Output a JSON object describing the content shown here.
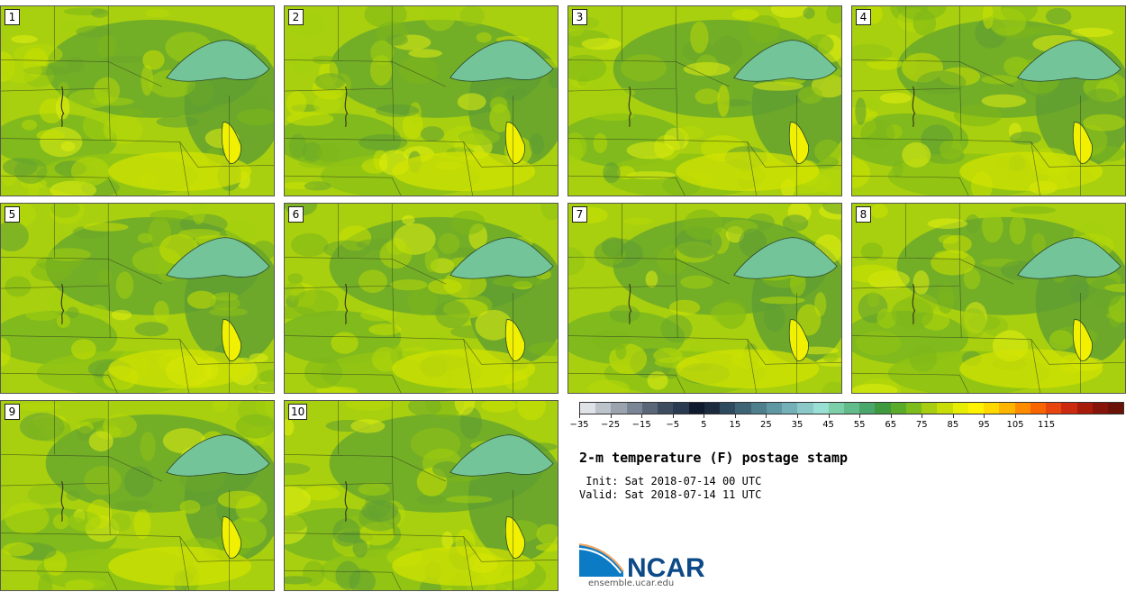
{
  "panels": [
    {
      "label": "1"
    },
    {
      "label": "2"
    },
    {
      "label": "3"
    },
    {
      "label": "4"
    },
    {
      "label": "5"
    },
    {
      "label": "6"
    },
    {
      "label": "7"
    },
    {
      "label": "8"
    },
    {
      "label": "9"
    },
    {
      "label": "10"
    }
  ],
  "colorbar": {
    "colors": [
      "#dfe3e8",
      "#bcc3cb",
      "#9aa3ae",
      "#7a8595",
      "#5a6779",
      "#3e4c60",
      "#2a3a50",
      "#0f1a2e",
      "#1b2a3c",
      "#2e4a5e",
      "#3e6475",
      "#4f7e8c",
      "#5f98a3",
      "#74b0b8",
      "#8cc8c8",
      "#9adfd4",
      "#7ccfa8",
      "#62bb8a",
      "#4aa76c",
      "#3f9a3f",
      "#5aab2a",
      "#7cbc1c",
      "#a6cd10",
      "#c8dd08",
      "#e6ec04",
      "#fff200",
      "#ffd800",
      "#ffb400",
      "#ff8c00",
      "#f86400",
      "#e84410",
      "#cc2a0e",
      "#a81a0a",
      "#86140a",
      "#6a1208"
    ],
    "ticks": [
      "−35",
      "−25",
      "−15",
      "−5",
      "5",
      "15",
      "25",
      "35",
      "45",
      "55",
      "65",
      "75",
      "85",
      "95",
      "105",
      "115"
    ],
    "tick_positions": [
      0,
      2,
      4,
      6,
      8,
      10,
      12,
      14,
      16,
      18,
      20,
      22,
      24,
      26,
      28,
      30
    ]
  },
  "title": "2-m temperature (F) postage stamp",
  "init": " Init: Sat 2018-07-14 00 UTC",
  "valid": "Valid: Sat 2018-07-14 11 UTC",
  "logo": {
    "text": "NCAR",
    "url": "ensemble.ucar.edu"
  }
}
